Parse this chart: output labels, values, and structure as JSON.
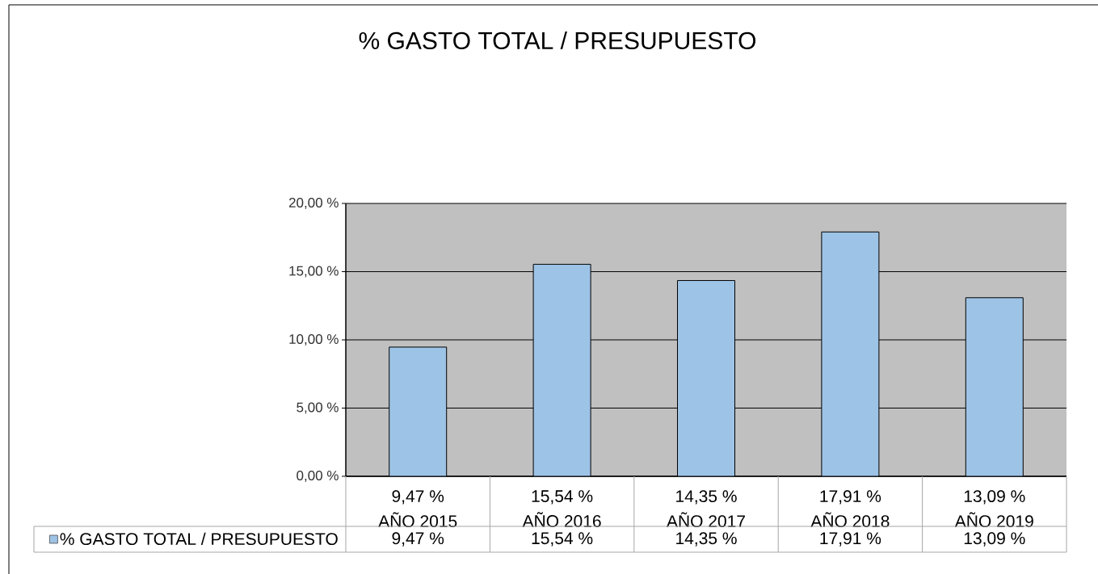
{
  "chart_data": {
    "type": "bar",
    "title": "% GASTO TOTAL / PRESUPUESTO",
    "categories": [
      "AÑO 2015",
      "AÑO 2016",
      "AÑO 2017",
      "AÑO 2018",
      "AÑO 2019"
    ],
    "series": [
      {
        "name": "% GASTO TOTAL / PRESUPUESTO",
        "color": "#9dc3e6",
        "values": [
          9.47,
          15.54,
          14.35,
          17.91,
          13.09
        ],
        "value_labels": [
          "9,47 %",
          "15,54 %",
          "14,35 %",
          "17,91 %",
          "13,09 %"
        ]
      }
    ],
    "ylim": [
      0,
      20
    ],
    "yticks": [
      {
        "value": 0,
        "label": "0,00 %"
      },
      {
        "value": 5,
        "label": "5,00 %"
      },
      {
        "value": 10,
        "label": "10,00 %"
      },
      {
        "value": 15,
        "label": "15,00 %"
      },
      {
        "value": 20,
        "label": "20,00 %"
      }
    ],
    "grid": "y",
    "legend": "bottom"
  }
}
